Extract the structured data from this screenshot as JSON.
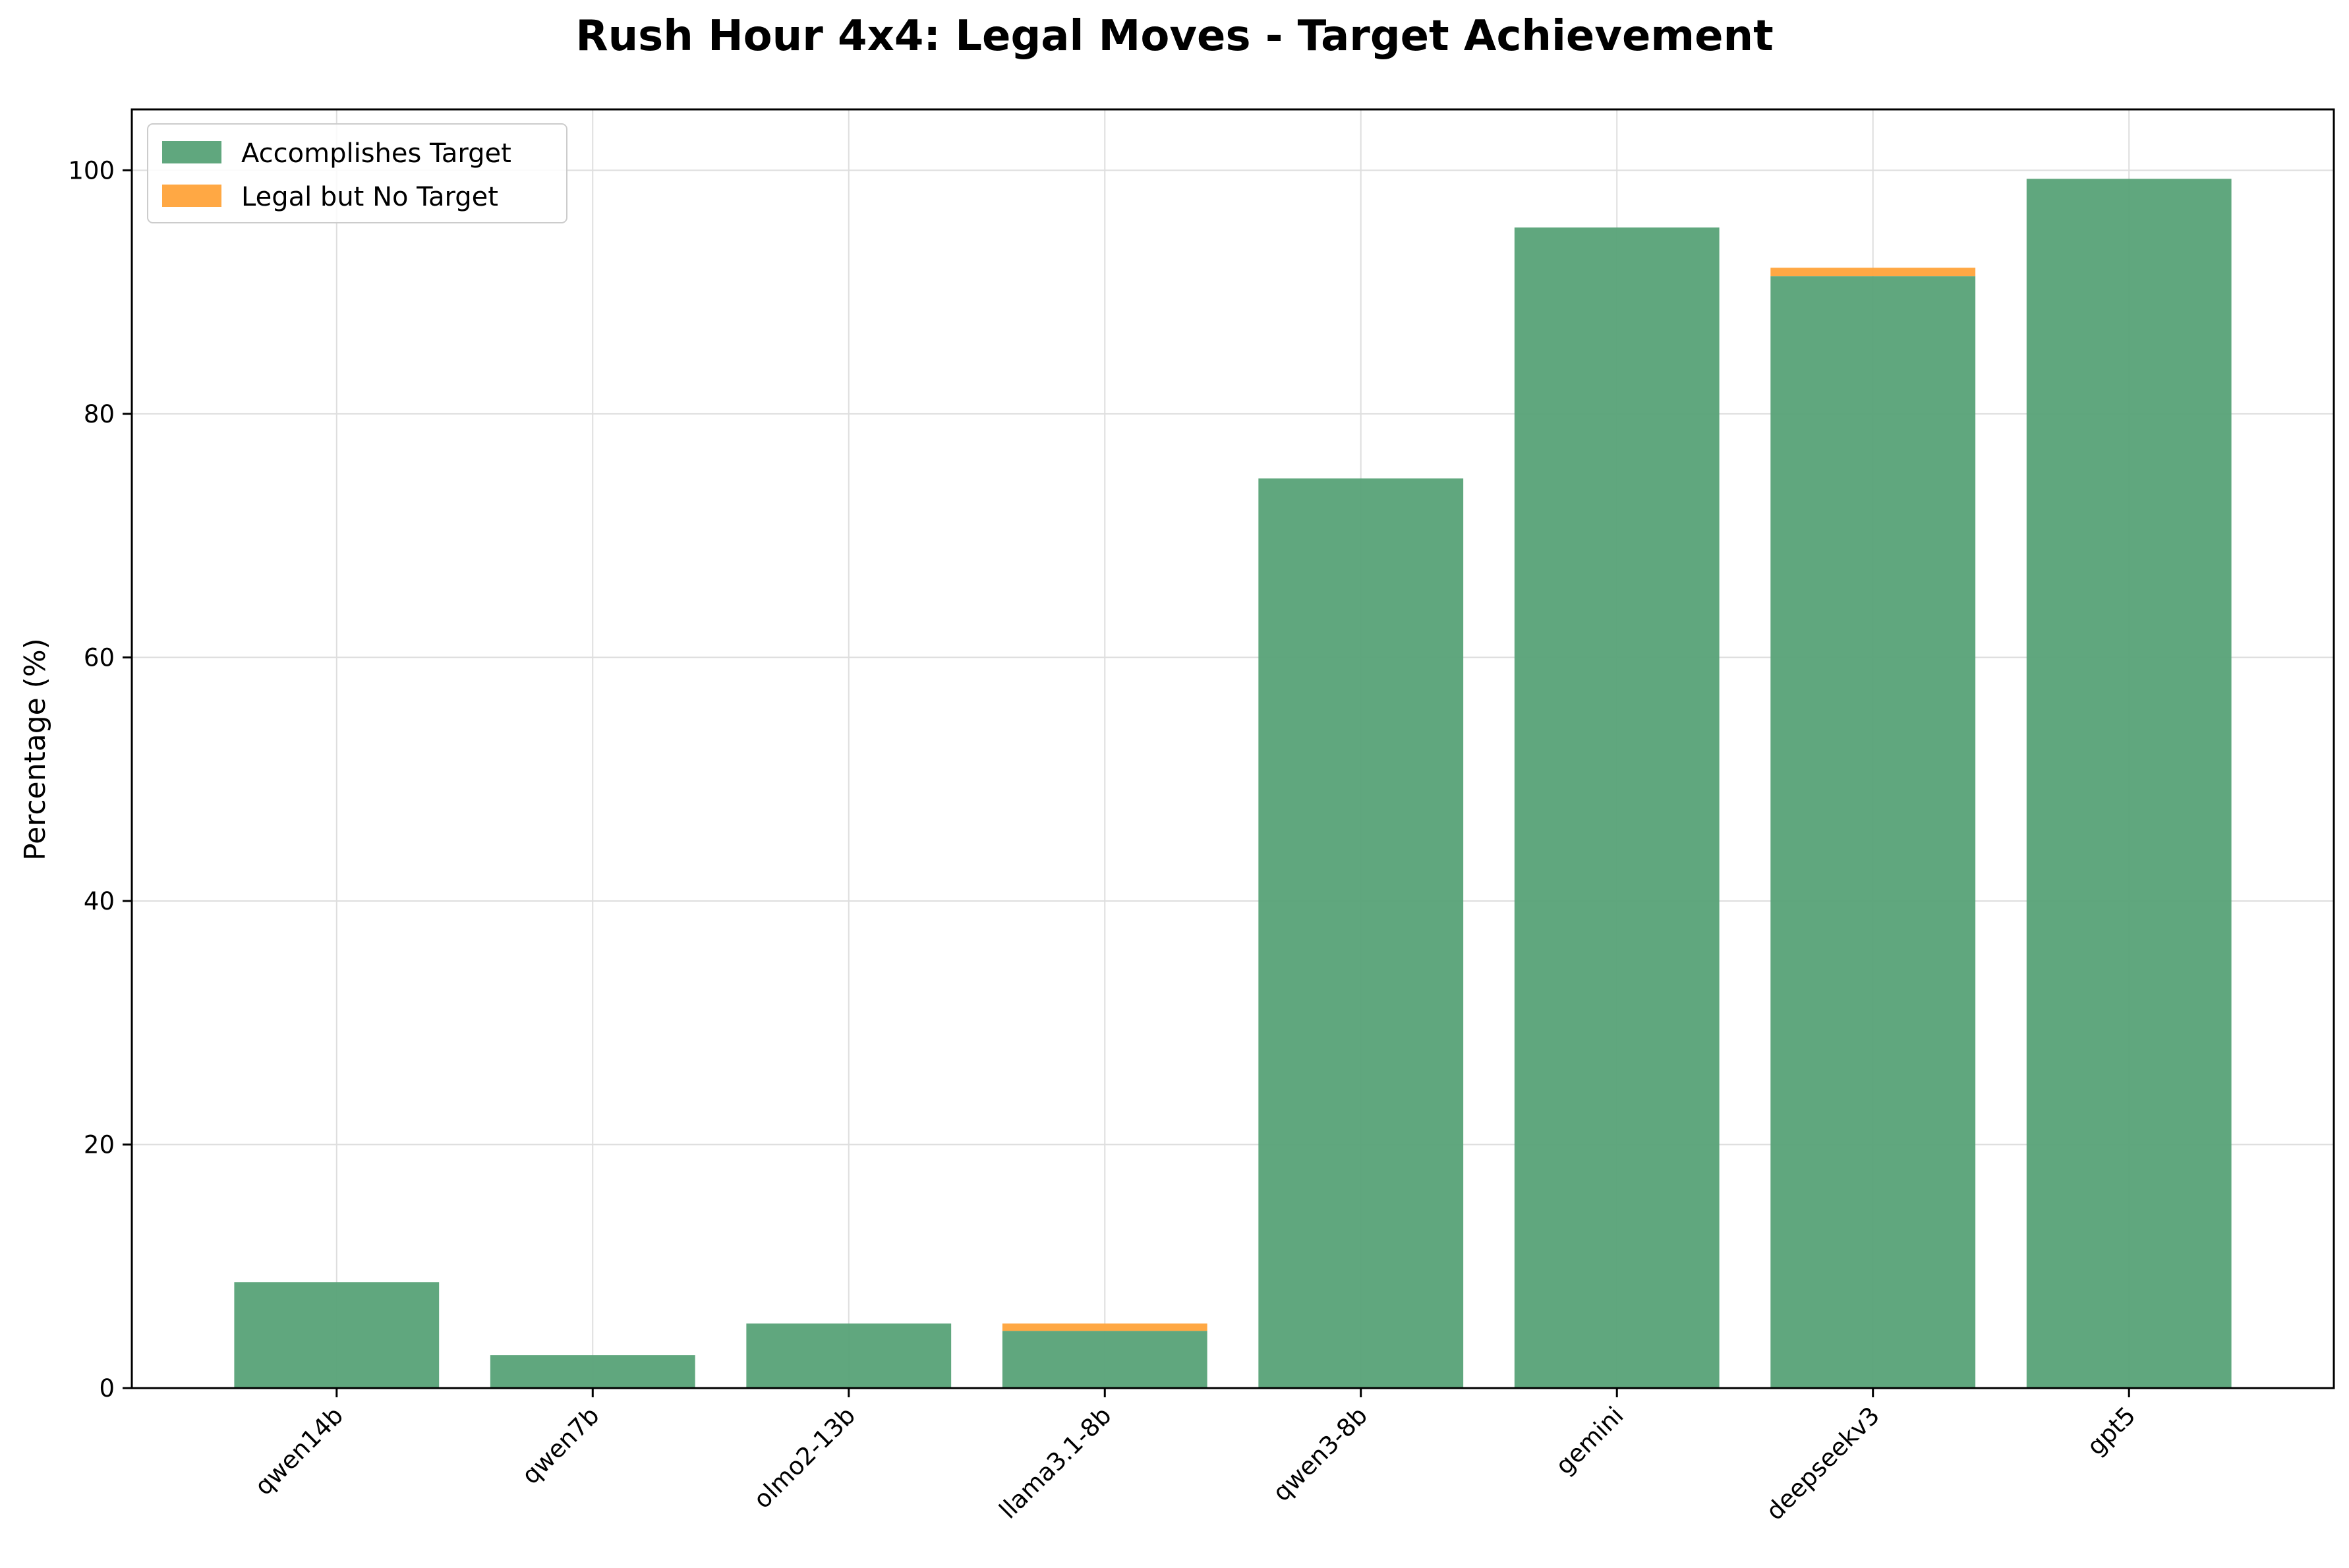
{
  "chart_data": {
    "type": "bar",
    "stacked": true,
    "title": "Rush Hour 4x4: Legal Moves - Target Achievement",
    "xlabel": "",
    "ylabel": "Percentage (%)",
    "ylim": [
      0,
      105
    ],
    "yticks": [
      0,
      20,
      40,
      60,
      80,
      100
    ],
    "grid": true,
    "legend_position": "top-left",
    "categories": [
      "qwen14b",
      "qwen7b",
      "olmo2-13b",
      "llama3.1-8b",
      "qwen3-8b",
      "gemini",
      "deepseekv3",
      "gpt5"
    ],
    "series": [
      {
        "name": "Accomplishes Target",
        "color": "#57a277",
        "values": [
          8.7,
          2.7,
          5.3,
          4.7,
          74.7,
          95.3,
          91.3,
          99.3
        ]
      },
      {
        "name": "Legal but No Target",
        "color": "#ffa33a",
        "values": [
          0.0,
          0.0,
          0.0,
          0.6,
          0.0,
          0.0,
          0.7,
          0.0
        ]
      }
    ]
  }
}
